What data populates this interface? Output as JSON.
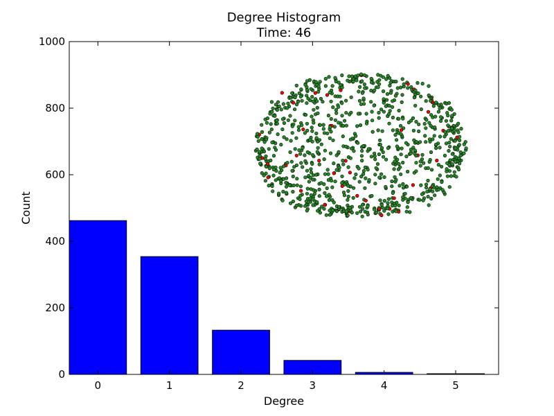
{
  "chart_data": {
    "type": "bar",
    "title": "Degree Histogram",
    "subtitle": "Time: 46",
    "xlabel": "Degree",
    "ylabel": "Count",
    "categories": [
      "0",
      "1",
      "2",
      "3",
      "4",
      "5"
    ],
    "values": [
      462,
      354,
      133,
      42,
      6,
      2
    ],
    "ylim": [
      0,
      1000
    ],
    "yticks": [
      "0",
      "200",
      "400",
      "600",
      "800",
      "1000"
    ],
    "bar_color": "#0000ff",
    "inset": {
      "type": "network",
      "node_color": "#228b22",
      "highlight_color": "#ff0000"
    }
  }
}
